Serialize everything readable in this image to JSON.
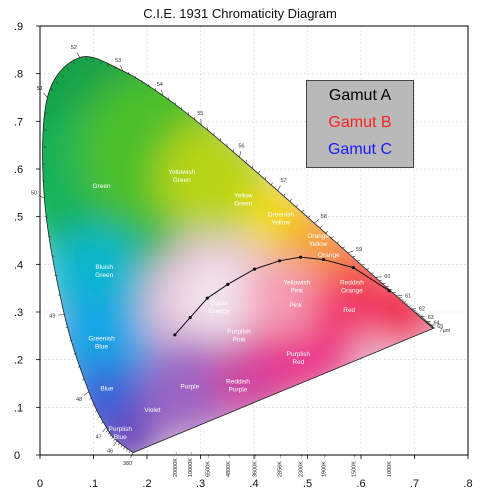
{
  "chart_data": {
    "type": "area",
    "title": "C.I.E. 1931 Chromaticity Diagram",
    "xlim": [
      0,
      0.8
    ],
    "ylim": [
      0,
      0.9
    ],
    "grid": true,
    "legend_placement": "top-right",
    "x_ticks": [
      "0",
      ".1",
      ".2",
      ".3",
      ".4",
      ".5",
      ".6",
      ".7",
      ".8"
    ],
    "y_ticks": [
      "0",
      ".1",
      ".2",
      ".3",
      ".4",
      ".5",
      ".6",
      ".7",
      ".8",
      ".9"
    ],
    "legend": [
      {
        "label": "Gamut A",
        "color": "#000000"
      },
      {
        "label": "Gamut B",
        "color": "#ff2020"
      },
      {
        "label": "Gamut C",
        "color": "#1a1aff"
      }
    ],
    "spectral_locus": [
      {
        "nm": "380",
        "x": 0.1741,
        "y": 0.005
      },
      {
        "nm": "46",
        "x": 0.144,
        "y": 0.0297
      },
      {
        "nm": "47",
        "x": 0.1241,
        "y": 0.0578
      },
      {
        "nm": "48",
        "x": 0.0913,
        "y": 0.1327
      },
      {
        "nm": "49",
        "x": 0.0454,
        "y": 0.295
      },
      {
        "nm": "50",
        "x": 0.0082,
        "y": 0.5384
      },
      {
        "nm": "51",
        "x": 0.0139,
        "y": 0.7502
      },
      {
        "nm": "52",
        "x": 0.0743,
        "y": 0.8338
      },
      {
        "nm": "53",
        "x": 0.1547,
        "y": 0.8059
      },
      {
        "nm": "54",
        "x": 0.2296,
        "y": 0.7543
      },
      {
        "nm": "55",
        "x": 0.3016,
        "y": 0.6923
      },
      {
        "nm": "56",
        "x": 0.3731,
        "y": 0.6245
      },
      {
        "nm": "57",
        "x": 0.4441,
        "y": 0.5547
      },
      {
        "nm": "58",
        "x": 0.5125,
        "y": 0.4866
      },
      {
        "nm": "59",
        "x": 0.5752,
        "y": 0.4242
      },
      {
        "nm": "60",
        "x": 0.627,
        "y": 0.3725
      },
      {
        "nm": "61",
        "x": 0.6658,
        "y": 0.334
      },
      {
        "nm": "62",
        "x": 0.6915,
        "y": 0.3083
      },
      {
        "nm": "63",
        "x": 0.7079,
        "y": 0.292
      },
      {
        "nm": "64",
        "x": 0.719,
        "y": 0.2809
      },
      {
        "nm": "65",
        "x": 0.726,
        "y": 0.274
      },
      {
        "nm": "7µm",
        "x": 0.7347,
        "y": 0.2653
      }
    ],
    "planckian_locus": [
      {
        "kelvin": "1000K",
        "x": 0.6528,
        "y": 0.3444
      },
      {
        "kelvin": "1500K",
        "x": 0.5857,
        "y": 0.3931
      },
      {
        "kelvin": "1900K",
        "x": 0.53,
        "y": 0.41
      },
      {
        "kelvin": "2300K",
        "x": 0.487,
        "y": 0.415
      },
      {
        "kelvin": "2856K",
        "x": 0.4476,
        "y": 0.4074
      },
      {
        "kelvin": "3600K",
        "x": 0.401,
        "y": 0.39
      },
      {
        "kelvin": "4800K",
        "x": 0.351,
        "y": 0.358
      },
      {
        "kelvin": "6500K",
        "x": 0.3127,
        "y": 0.329
      },
      {
        "kelvin": "10000K",
        "x": 0.2807,
        "y": 0.2883
      },
      {
        "kelvin": "20000K",
        "x": 0.252,
        "y": 0.252
      }
    ],
    "region_labels": [
      {
        "text": "Green",
        "x": 0.115,
        "y": 0.56
      },
      {
        "text": "Yellowish Green",
        "x": 0.265,
        "y": 0.59
      },
      {
        "text": "Yellow Green",
        "x": 0.38,
        "y": 0.54
      },
      {
        "text": "Greenish Yellow",
        "x": 0.45,
        "y": 0.5
      },
      {
        "text": "Orange Yellow",
        "x": 0.52,
        "y": 0.455
      },
      {
        "text": "Orange",
        "x": 0.54,
        "y": 0.415
      },
      {
        "text": "Bluish Green",
        "x": 0.12,
        "y": 0.39
      },
      {
        "text": "Yellowish Pink",
        "x": 0.48,
        "y": 0.358
      },
      {
        "text": "Reddish Orange",
        "x": 0.583,
        "y": 0.358
      },
      {
        "text": "Equal Energy",
        "x": 0.335,
        "y": 0.315
      },
      {
        "text": "Pink",
        "x": 0.478,
        "y": 0.31
      },
      {
        "text": "Red",
        "x": 0.578,
        "y": 0.3
      },
      {
        "text": "Purplish Pink",
        "x": 0.372,
        "y": 0.255
      },
      {
        "text": "Greenish Blue",
        "x": 0.115,
        "y": 0.24
      },
      {
        "text": "Purplish Red",
        "x": 0.483,
        "y": 0.208
      },
      {
        "text": "Blue",
        "x": 0.125,
        "y": 0.135
      },
      {
        "text": "Purple",
        "x": 0.28,
        "y": 0.14
      },
      {
        "text": "Reddish Purple",
        "x": 0.37,
        "y": 0.15
      },
      {
        "text": "Violet",
        "x": 0.21,
        "y": 0.09
      },
      {
        "text": "Purplish Blue",
        "x": 0.15,
        "y": 0.05
      }
    ]
  }
}
